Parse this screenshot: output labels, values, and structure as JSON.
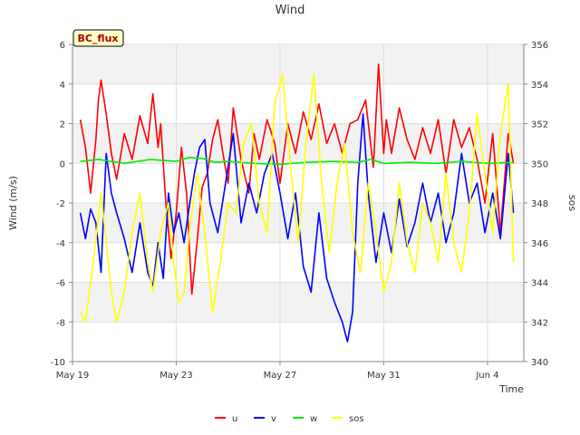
{
  "chart_data": {
    "type": "line",
    "title": "Wind",
    "badge": "BC_flux",
    "xlabel": "Time",
    "ylabel": "Wind (m/s)",
    "y2label": "sos",
    "xlim": [
      0,
      17.4
    ],
    "ylim": [
      -10,
      6
    ],
    "y2lim": [
      340,
      356
    ],
    "xticks": [
      {
        "value": 0,
        "label": "May 19"
      },
      {
        "value": 4,
        "label": "May 23"
      },
      {
        "value": 8,
        "label": "May 27"
      },
      {
        "value": 12,
        "label": "May 31"
      },
      {
        "value": 16,
        "label": "Jun 4"
      }
    ],
    "yticks": [
      -10,
      -8,
      -6,
      -4,
      -2,
      0,
      2,
      4,
      6
    ],
    "y2ticks": [
      340,
      342,
      344,
      346,
      348,
      350,
      352,
      354,
      356
    ],
    "series": [
      {
        "name": "u",
        "color": "#ff0000",
        "axis": "left",
        "x": [
          0.3,
          0.5,
          0.7,
          0.9,
          1.0,
          1.1,
          1.3,
          1.5,
          1.7,
          2.0,
          2.3,
          2.6,
          2.9,
          3.1,
          3.3,
          3.4,
          3.6,
          3.8,
          4.0,
          4.2,
          4.4,
          4.6,
          4.8,
          5.0,
          5.2,
          5.4,
          5.6,
          5.8,
          6.0,
          6.2,
          6.5,
          6.8,
          7.0,
          7.2,
          7.5,
          7.8,
          8.0,
          8.3,
          8.6,
          8.9,
          9.2,
          9.5,
          9.8,
          10.1,
          10.4,
          10.7,
          11.0,
          11.3,
          11.6,
          11.8,
          12.0,
          12.1,
          12.3,
          12.6,
          12.9,
          13.2,
          13.5,
          13.8,
          14.1,
          14.4,
          14.7,
          15.0,
          15.3,
          15.6,
          15.9,
          16.2,
          16.5,
          16.8,
          17.0
        ],
        "values": [
          2.2,
          0.8,
          -1.5,
          1.2,
          3.2,
          4.2,
          2.5,
          0.5,
          -0.8,
          1.5,
          0.2,
          2.4,
          1.0,
          3.5,
          0.8,
          2.0,
          -2.0,
          -4.8,
          -2.5,
          0.8,
          -1.5,
          -6.6,
          -4.0,
          -1.2,
          -0.5,
          1.2,
          2.2,
          0.5,
          -1.0,
          2.8,
          0.2,
          -1.5,
          1.5,
          0.2,
          2.2,
          1.0,
          -1.0,
          2.0,
          0.5,
          2.6,
          1.2,
          3.0,
          1.0,
          2.0,
          0.5,
          2.0,
          2.2,
          3.2,
          -0.2,
          5.0,
          0.5,
          2.2,
          0.5,
          2.8,
          1.2,
          0.2,
          1.8,
          0.5,
          2.2,
          -0.5,
          2.2,
          0.8,
          1.8,
          0.2,
          -2.0,
          1.5,
          -3.5,
          1.5,
          0.0
        ]
      },
      {
        "name": "v",
        "color": "#0000ff",
        "axis": "left",
        "x": [
          0.3,
          0.5,
          0.7,
          0.9,
          1.1,
          1.3,
          1.5,
          1.7,
          2.0,
          2.3,
          2.6,
          2.9,
          3.1,
          3.3,
          3.5,
          3.7,
          3.9,
          4.1,
          4.3,
          4.5,
          4.7,
          4.9,
          5.1,
          5.3,
          5.6,
          5.9,
          6.2,
          6.5,
          6.8,
          7.1,
          7.4,
          7.7,
          8.0,
          8.3,
          8.6,
          8.9,
          9.2,
          9.5,
          9.8,
          10.1,
          10.4,
          10.6,
          10.8,
          11.0,
          11.2,
          11.4,
          11.7,
          12.0,
          12.3,
          12.6,
          12.9,
          13.2,
          13.5,
          13.8,
          14.1,
          14.4,
          14.7,
          15.0,
          15.3,
          15.6,
          15.9,
          16.2,
          16.5,
          16.8,
          17.0
        ],
        "values": [
          -2.5,
          -3.8,
          -2.3,
          -3.0,
          -5.5,
          0.5,
          -1.5,
          -2.5,
          -3.8,
          -5.5,
          -3.0,
          -5.5,
          -6.2,
          -4.0,
          -5.8,
          -1.5,
          -3.5,
          -2.5,
          -4.0,
          -2.2,
          -0.5,
          0.8,
          1.2,
          -2.0,
          -3.5,
          -1.0,
          1.5,
          -3.0,
          -1.0,
          -2.5,
          -0.5,
          0.5,
          -1.5,
          -3.8,
          -1.5,
          -5.2,
          -6.5,
          -2.5,
          -5.8,
          -7.0,
          -8.0,
          -9.0,
          -7.5,
          -1.0,
          2.5,
          -1.5,
          -5.0,
          -2.5,
          -4.5,
          -1.8,
          -4.2,
          -3.0,
          -1.0,
          -3.0,
          -1.5,
          -4.0,
          -2.5,
          0.5,
          -2.0,
          -1.0,
          -3.5,
          -1.5,
          -3.8,
          0.5,
          -2.5
        ]
      },
      {
        "name": "w",
        "color": "#00ee00",
        "axis": "left",
        "x": [
          0.3,
          1.0,
          2.0,
          3.0,
          4.0,
          4.5,
          5.0,
          5.5,
          6.0,
          7.0,
          8.0,
          9.0,
          10.0,
          11.0,
          11.5,
          12.0,
          13.0,
          14.0,
          15.0,
          16.0,
          17.0
        ],
        "values": [
          0.1,
          0.2,
          0.0,
          0.2,
          0.1,
          0.3,
          0.25,
          0.05,
          0.1,
          0.0,
          -0.05,
          0.05,
          0.1,
          0.05,
          0.2,
          0.0,
          0.05,
          0.0,
          0.1,
          0.0,
          0.05
        ]
      },
      {
        "name": "sos",
        "color": "#ffff00",
        "axis": "right",
        "x": [
          0.3,
          0.5,
          0.8,
          1.1,
          1.3,
          1.5,
          1.7,
          2.0,
          2.3,
          2.6,
          2.9,
          3.1,
          3.4,
          3.7,
          3.9,
          4.1,
          4.3,
          4.5,
          4.8,
          5.1,
          5.4,
          5.7,
          6.0,
          6.3,
          6.6,
          6.9,
          7.2,
          7.5,
          7.8,
          8.1,
          8.4,
          8.7,
          9.0,
          9.3,
          9.6,
          9.9,
          10.2,
          10.5,
          10.8,
          11.1,
          11.4,
          11.7,
          12.0,
          12.3,
          12.6,
          12.9,
          13.2,
          13.5,
          13.8,
          14.1,
          14.4,
          14.7,
          15.0,
          15.3,
          15.6,
          15.9,
          16.2,
          16.5,
          16.8,
          17.0
        ],
        "values": [
          342.5,
          342.0,
          345.0,
          348.5,
          346.0,
          343.5,
          342.0,
          343.5,
          346.5,
          348.5,
          345.0,
          343.5,
          346.5,
          348.0,
          345.0,
          343.0,
          343.5,
          346.5,
          349.5,
          346.5,
          342.5,
          345.0,
          348.0,
          347.5,
          351.0,
          352.0,
          348.0,
          346.5,
          353.0,
          354.5,
          350.0,
          346.0,
          351.0,
          354.5,
          349.0,
          345.5,
          349.0,
          351.0,
          346.5,
          344.5,
          349.0,
          346.5,
          343.5,
          345.0,
          349.0,
          346.0,
          344.5,
          348.0,
          347.0,
          345.0,
          349.5,
          346.0,
          344.5,
          347.5,
          352.5,
          349.5,
          346.5,
          351.5,
          354.0,
          345.0
        ]
      }
    ]
  }
}
